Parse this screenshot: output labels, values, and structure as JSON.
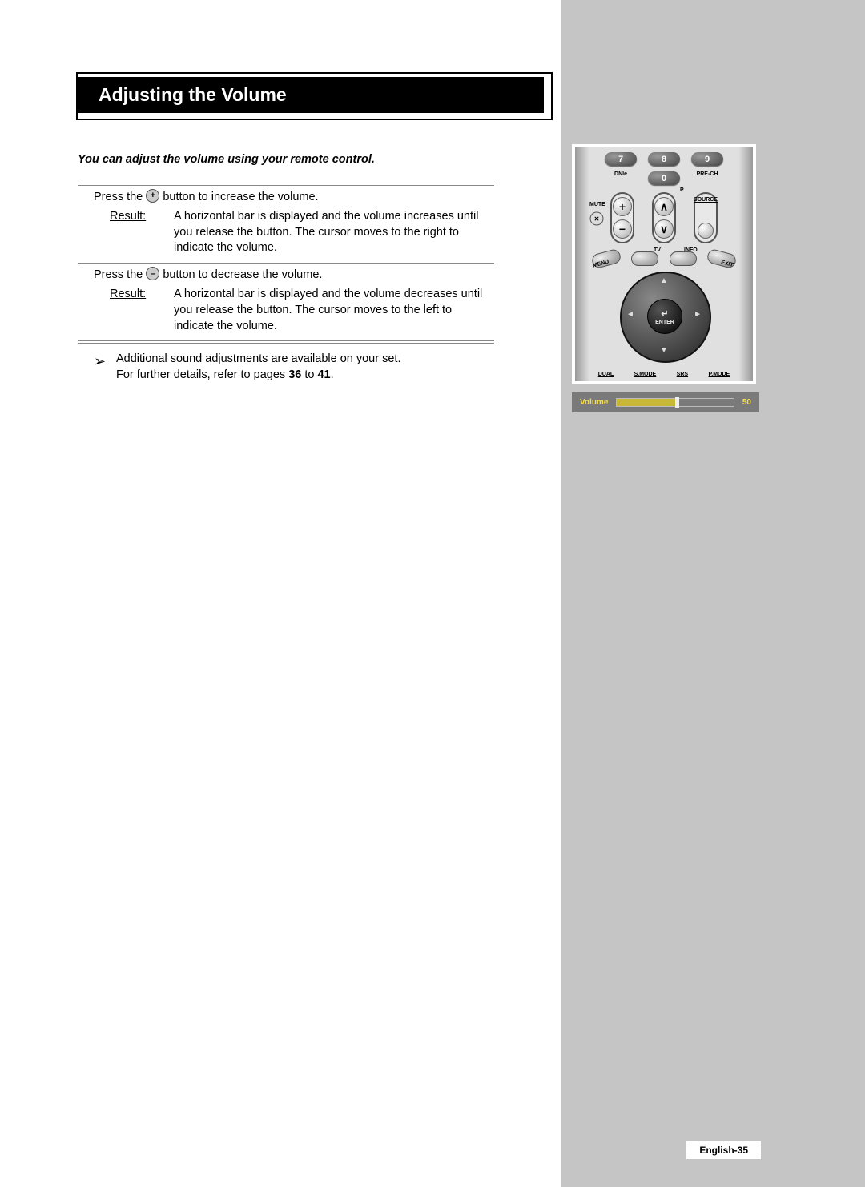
{
  "title": "Adjusting the Volume",
  "intro": "You can adjust the volume using your remote control.",
  "step1": {
    "press_pre": "Press the",
    "icon_glyph": "+",
    "press_post": "button to increase the volume.",
    "result_label": "Result:",
    "result_text": "A horizontal bar is displayed and the volume increases until you release the button. The cursor moves to the right to indicate the volume."
  },
  "step2": {
    "press_pre": "Press the",
    "icon_glyph": "–",
    "press_post": "button to decrease the volume.",
    "result_label": "Result:",
    "result_text": "A horizontal bar is displayed and the volume decreases until you release the button. The cursor moves to the left to indicate the volume."
  },
  "note": {
    "line1": "Additional sound adjustments are available on your set.",
    "line2_pre": "For further details, refer to pages ",
    "page_a": "36",
    "mid": " to ",
    "page_b": "41",
    "dot": "."
  },
  "remote": {
    "num7": "7",
    "num8": "8",
    "num9": "9",
    "num0": "0",
    "lbl_dnie": "DNIe",
    "lbl_prech": "PRE-CH",
    "lbl_p": "P",
    "lbl_mute": "MUTE",
    "lbl_source": "SOURCE",
    "lbl_menu": "MENU",
    "lbl_tv": "TV",
    "lbl_info": "INFO",
    "lbl_exit": "EXIT",
    "plus": "+",
    "minus": "−",
    "up": "∧",
    "down": "∨",
    "enter": "ENTER",
    "enter_icon": "↵",
    "arrow_up": "▲",
    "arrow_down": "▼",
    "arrow_left": "◄",
    "arrow_right": "►",
    "btm_dual": "DUAL",
    "btm_smode": "S.MODE",
    "btm_srs": "SRS",
    "btm_pmode": "P.MODE"
  },
  "osd": {
    "label": "Volume",
    "value": "50",
    "fill_percent": 50
  },
  "page_number": "English-35",
  "colors": {
    "sidebar": "#c5c5c5",
    "osd_bg": "#7a7a7a",
    "osd_text": "#f5e050",
    "osd_fill": "#c8b838"
  }
}
